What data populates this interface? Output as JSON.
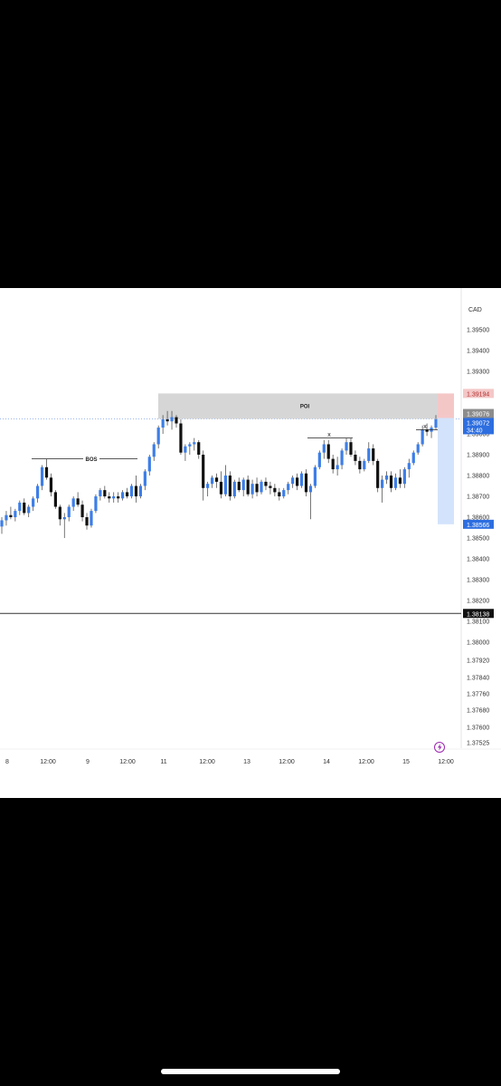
{
  "chart_data": {
    "type": "candlestick",
    "currency_label": "CAD",
    "y_ticks": [
      "1.39500",
      "1.39400",
      "1.39300",
      "1.39000",
      "1.38900",
      "1.38800",
      "1.38700",
      "1.38600",
      "1.38500",
      "1.38400",
      "1.38300",
      "1.38200",
      "1.38100",
      "1.38000",
      "1.37920",
      "1.37840",
      "1.37760",
      "1.37680",
      "1.37600",
      "1.37525"
    ],
    "x_ticks": [
      "8",
      "12:00",
      "9",
      "12:00",
      "11",
      "12:00",
      "13",
      "12:00",
      "14",
      "12:00",
      "15",
      "12:00"
    ],
    "price_labels": {
      "target": "1.39194",
      "last_close": "1.39076",
      "current": "1.39072",
      "countdown": "34:40",
      "stop": "1.38566",
      "horizontal_line": "1.38138"
    },
    "annotations": {
      "poi": "POI",
      "bos": "BOS",
      "x_marker_1": "x",
      "x_marker_2": "x"
    },
    "candles": [
      [
        1.38555,
        1.386,
        1.3852,
        1.38585
      ],
      [
        1.38585,
        1.3863,
        1.3856,
        1.3861
      ],
      [
        1.3861,
        1.3865,
        1.3859,
        1.386
      ],
      [
        1.386,
        1.3864,
        1.3858,
        1.3863
      ],
      [
        1.3863,
        1.3868,
        1.3861,
        1.3867
      ],
      [
        1.3867,
        1.3869,
        1.3861,
        1.3862
      ],
      [
        1.3862,
        1.3866,
        1.386,
        1.3865
      ],
      [
        1.3865,
        1.387,
        1.3863,
        1.3869
      ],
      [
        1.3869,
        1.3876,
        1.3867,
        1.3875
      ],
      [
        1.3875,
        1.3885,
        1.3873,
        1.3884
      ],
      [
        1.3884,
        1.3888,
        1.3878,
        1.3879
      ],
      [
        1.3879,
        1.3881,
        1.387,
        1.3872
      ],
      [
        1.3872,
        1.3873,
        1.3864,
        1.3865
      ],
      [
        1.3865,
        1.3866,
        1.3856,
        1.3859
      ],
      [
        1.3859,
        1.3862,
        1.385,
        1.386
      ],
      [
        1.386,
        1.3866,
        1.3858,
        1.3865
      ],
      [
        1.3865,
        1.387,
        1.3863,
        1.3869
      ],
      [
        1.3869,
        1.3872,
        1.3865,
        1.3866
      ],
      [
        1.3866,
        1.3868,
        1.3858,
        1.386
      ],
      [
        1.386,
        1.3862,
        1.3854,
        1.3856
      ],
      [
        1.3856,
        1.3864,
        1.3855,
        1.3863
      ],
      [
        1.3863,
        1.3871,
        1.3862,
        1.387
      ],
      [
        1.387,
        1.3874,
        1.3868,
        1.3873
      ],
      [
        1.3873,
        1.3875,
        1.3869,
        1.387
      ],
      [
        1.387,
        1.3872,
        1.3867,
        1.3869
      ],
      [
        1.3869,
        1.3872,
        1.3867,
        1.387
      ],
      [
        1.387,
        1.3872,
        1.3867,
        1.3869
      ],
      [
        1.3869,
        1.3873,
        1.3868,
        1.3872
      ],
      [
        1.3872,
        1.3874,
        1.3869,
        1.387
      ],
      [
        1.387,
        1.3876,
        1.3869,
        1.3875
      ],
      [
        1.3875,
        1.388,
        1.3867,
        1.387
      ],
      [
        1.387,
        1.3876,
        1.3869,
        1.3875
      ],
      [
        1.3875,
        1.3883,
        1.3873,
        1.3882
      ],
      [
        1.3882,
        1.389,
        1.388,
        1.3889
      ],
      [
        1.3889,
        1.3896,
        1.3887,
        1.3895
      ],
      [
        1.3895,
        1.3904,
        1.3893,
        1.3903
      ],
      [
        1.3903,
        1.3909,
        1.39,
        1.3907
      ],
      [
        1.3907,
        1.3911,
        1.3904,
        1.3906
      ],
      [
        1.3906,
        1.3911,
        1.3902,
        1.3908
      ],
      [
        1.3908,
        1.3909,
        1.3903,
        1.3905
      ],
      [
        1.3905,
        1.3907,
        1.389,
        1.3891
      ],
      [
        1.3891,
        1.3895,
        1.3887,
        1.3894
      ],
      [
        1.3894,
        1.3896,
        1.389,
        1.3895
      ],
      [
        1.3895,
        1.3898,
        1.3892,
        1.3896
      ],
      [
        1.3896,
        1.3897,
        1.3888,
        1.389
      ],
      [
        1.389,
        1.3892,
        1.3868,
        1.3874
      ],
      [
        1.3874,
        1.3877,
        1.387,
        1.3876
      ],
      [
        1.3876,
        1.388,
        1.3874,
        1.3879
      ],
      [
        1.3879,
        1.3881,
        1.3874,
        1.3877
      ],
      [
        1.3877,
        1.3882,
        1.3869,
        1.3871
      ],
      [
        1.3871,
        1.3885,
        1.387,
        1.388
      ],
      [
        1.388,
        1.3882,
        1.3868,
        1.387
      ],
      [
        1.387,
        1.3878,
        1.3869,
        1.3877
      ],
      [
        1.3877,
        1.3879,
        1.3872,
        1.3873
      ],
      [
        1.3873,
        1.3879,
        1.387,
        1.3878
      ],
      [
        1.3878,
        1.388,
        1.387,
        1.3871
      ],
      [
        1.3871,
        1.3878,
        1.3869,
        1.3876
      ],
      [
        1.3876,
        1.3879,
        1.387,
        1.3872
      ],
      [
        1.3872,
        1.3878,
        1.3871,
        1.3877
      ],
      [
        1.3877,
        1.3879,
        1.3873,
        1.3875
      ],
      [
        1.3875,
        1.3877,
        1.3871,
        1.3874
      ],
      [
        1.3874,
        1.3876,
        1.387,
        1.3872
      ],
      [
        1.3872,
        1.3874,
        1.3868,
        1.387
      ],
      [
        1.387,
        1.3874,
        1.3869,
        1.3873
      ],
      [
        1.3873,
        1.3877,
        1.3871,
        1.3876
      ],
      [
        1.3876,
        1.388,
        1.3874,
        1.3879
      ],
      [
        1.3879,
        1.3881,
        1.3873,
        1.3875
      ],
      [
        1.3875,
        1.3882,
        1.3874,
        1.3881
      ],
      [
        1.3881,
        1.3883,
        1.387,
        1.3872
      ],
      [
        1.3872,
        1.3876,
        1.3859,
        1.3875
      ],
      [
        1.3875,
        1.3885,
        1.3874,
        1.3884
      ],
      [
        1.3884,
        1.3892,
        1.3883,
        1.3891
      ],
      [
        1.3891,
        1.3897,
        1.3888,
        1.3895
      ],
      [
        1.3895,
        1.3897,
        1.3886,
        1.3888
      ],
      [
        1.3888,
        1.389,
        1.3881,
        1.3883
      ],
      [
        1.3883,
        1.3889,
        1.388,
        1.3885
      ],
      [
        1.3885,
        1.3893,
        1.3883,
        1.3892
      ],
      [
        1.3892,
        1.3898,
        1.389,
        1.3896
      ],
      [
        1.3896,
        1.3898,
        1.3889,
        1.389
      ],
      [
        1.389,
        1.3892,
        1.3885,
        1.3887
      ],
      [
        1.3887,
        1.3889,
        1.3881,
        1.3883
      ],
      [
        1.3883,
        1.3888,
        1.3882,
        1.3887
      ],
      [
        1.3887,
        1.3896,
        1.3886,
        1.3893
      ],
      [
        1.3893,
        1.3895,
        1.3885,
        1.3887
      ],
      [
        1.3887,
        1.3888,
        1.3872,
        1.3874
      ],
      [
        1.3874,
        1.388,
        1.3867,
        1.3878
      ],
      [
        1.3878,
        1.3882,
        1.3876,
        1.388
      ],
      [
        1.388,
        1.3882,
        1.3872,
        1.3874
      ],
      [
        1.3874,
        1.3881,
        1.3873,
        1.3879
      ],
      [
        1.3879,
        1.3883,
        1.3874,
        1.3876
      ],
      [
        1.3876,
        1.3884,
        1.3874,
        1.3883
      ],
      [
        1.3883,
        1.3888,
        1.3879,
        1.3886
      ],
      [
        1.3886,
        1.3892,
        1.3885,
        1.3891
      ],
      [
        1.3891,
        1.3896,
        1.389,
        1.3895
      ],
      [
        1.3895,
        1.3904,
        1.3894,
        1.3902
      ],
      [
        1.3902,
        1.3905,
        1.3899,
        1.3901
      ],
      [
        1.3901,
        1.3904,
        1.3898,
        1.3903
      ],
      [
        1.3903,
        1.3909,
        1.3902,
        1.3907
      ]
    ],
    "y_range": [
      1.3745,
      1.397
    ]
  }
}
